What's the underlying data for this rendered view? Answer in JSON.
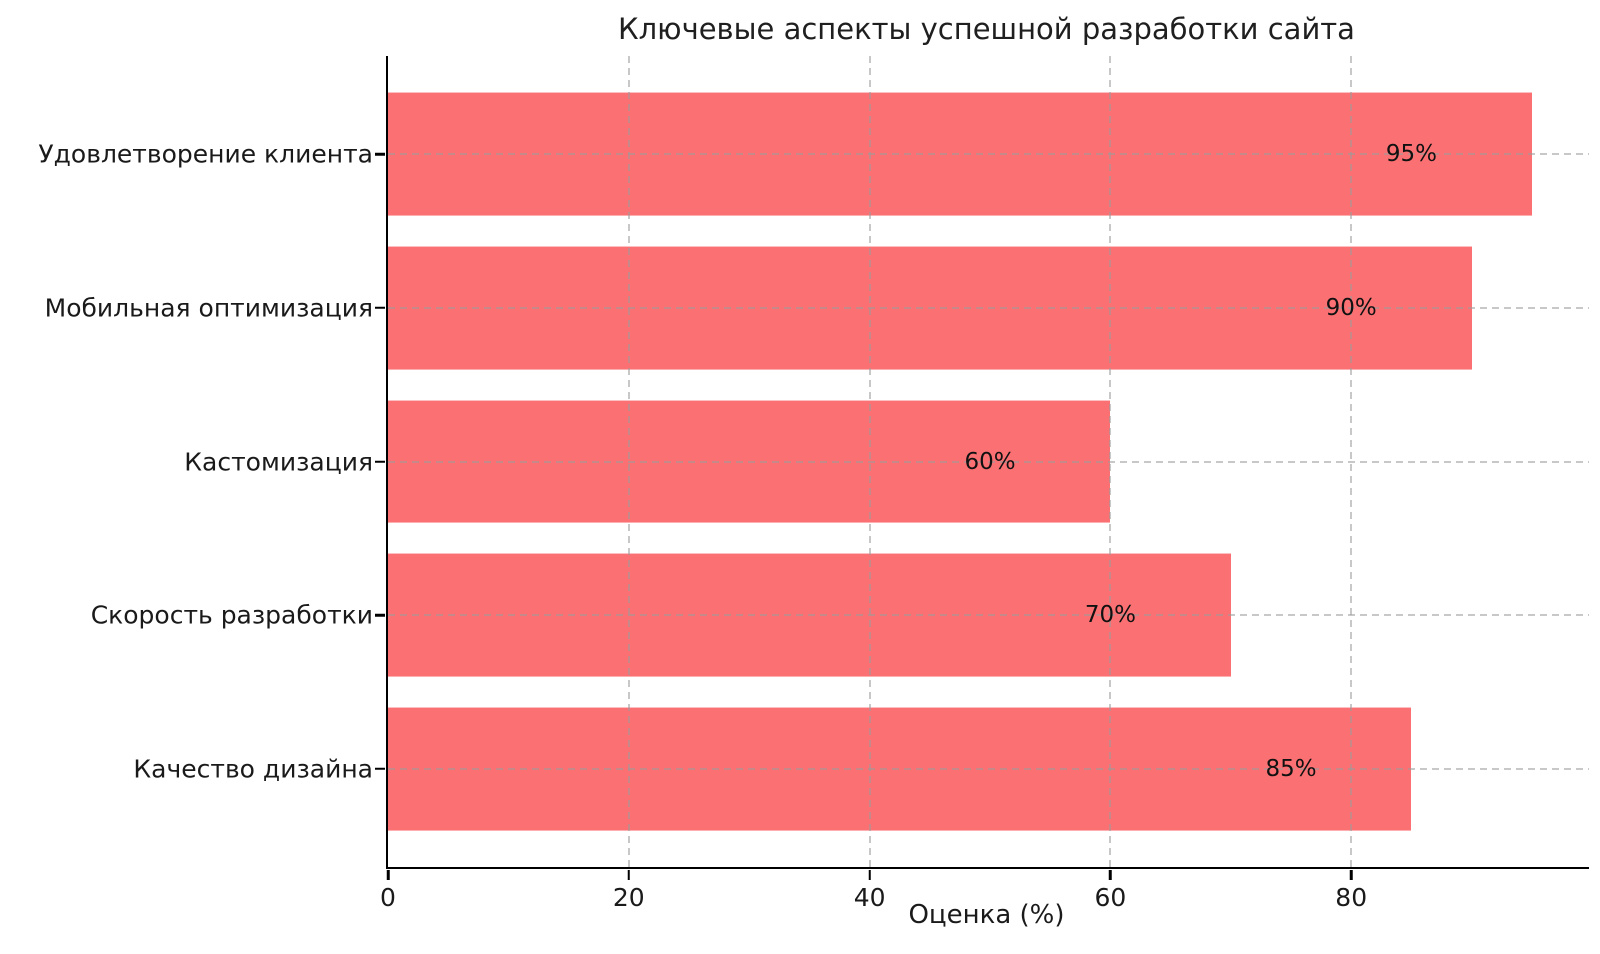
{
  "chart_data": {
    "type": "bar",
    "orientation": "horizontal",
    "title": "Ключевые аспекты успешной разработки сайта",
    "xlabel": "Оценка (%)",
    "ylabel": "",
    "categories": [
      "Удовлетворение клиента",
      "Мобильная оптимизация",
      "Кастомизация",
      "Скорость разработки",
      "Качество дизайна"
    ],
    "values": [
      95,
      90,
      60,
      70,
      85
    ],
    "value_labels": [
      "95%",
      "90%",
      "60%",
      "70%",
      "85%"
    ],
    "xticks": [
      0,
      20,
      40,
      60,
      80
    ],
    "xlim": [
      0,
      99.75
    ],
    "grid": true,
    "grid_style": "dashed",
    "legend": "none",
    "colors": {
      "bar": "#FB7173",
      "grid": "#9a9a9a",
      "axis": "#000000",
      "text": "#1a1a1a"
    }
  }
}
